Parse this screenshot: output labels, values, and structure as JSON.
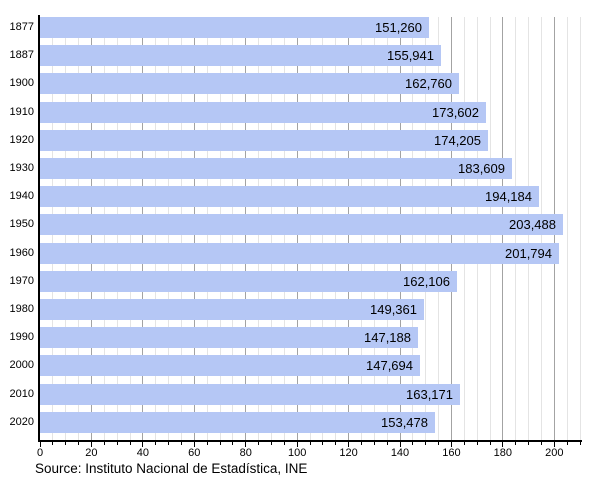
{
  "chart_data": {
    "type": "bar",
    "orientation": "horizontal",
    "title": "",
    "xlabel": "",
    "ylabel": "",
    "categories": [
      "1877",
      "1887",
      "1900",
      "1910",
      "1920",
      "1930",
      "1940",
      "1950",
      "1960",
      "1970",
      "1980",
      "1990",
      "2000",
      "2010",
      "2020"
    ],
    "values": [
      151260,
      155941,
      162760,
      173602,
      174205,
      183609,
      194184,
      203488,
      201794,
      162106,
      149361,
      147188,
      147694,
      163171,
      153478
    ],
    "value_labels": [
      "151,260",
      "155,941",
      "162,760",
      "173,602",
      "174,205",
      "183,609",
      "194,184",
      "203,488",
      "201,794",
      "162,106",
      "149,361",
      "147,188",
      "147,694",
      "163,171",
      "153,478"
    ],
    "axis_unit_divisor": 1000,
    "xlim": [
      0,
      210
    ],
    "x_major_tick_step": 20,
    "x_minor_tick_step": 5,
    "x_tick_labels": [
      "0",
      "20",
      "40",
      "60",
      "80",
      "100",
      "120",
      "140",
      "160",
      "180",
      "200"
    ],
    "grid": true,
    "legend": false
  },
  "colors": {
    "bar_fill": "#b5c7f5",
    "axis": "#000000",
    "major_grid": "#a3a3a3",
    "minor_grid": "#e4e4e4",
    "text": "#000000",
    "background": "#ffffff"
  },
  "source_note": "Source: Instituto Nacional de Estadística, INE"
}
